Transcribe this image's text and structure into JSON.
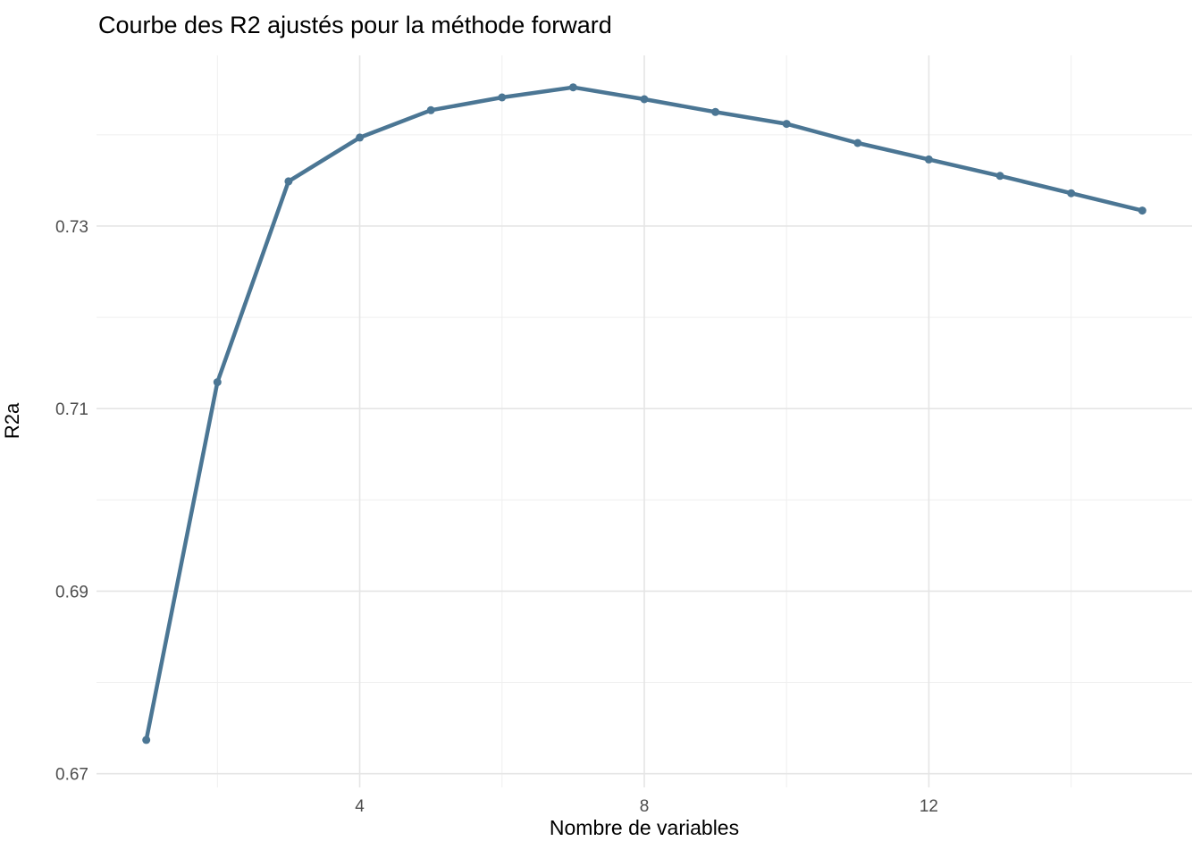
{
  "chart": {
    "title": "Courbe des R2 ajustés pour la méthode forward",
    "xlabel": "Nombre de variables",
    "ylabel": "R2a"
  },
  "chart_data": {
    "type": "line",
    "title": "Courbe des R2 ajustés pour la méthode forward",
    "xlabel": "Nombre de variables",
    "ylabel": "R2a",
    "x": [
      1,
      2,
      3,
      4,
      5,
      6,
      7,
      8,
      9,
      10,
      11,
      12,
      13,
      14,
      15
    ],
    "y": [
      0.6737,
      0.7129,
      0.7349,
      0.7397,
      0.7427,
      0.7441,
      0.7452,
      0.7439,
      0.7425,
      0.7412,
      0.7391,
      0.7373,
      0.7355,
      0.7336,
      0.7317
    ],
    "xlim": [
      0.3,
      15.7
    ],
    "ylim": [
      0.6685,
      0.7487
    ],
    "x_major_ticks": [
      4,
      8,
      12
    ],
    "x_tick_labels": [
      "4",
      "8",
      "12"
    ],
    "x_minor_ticks": [
      2,
      6,
      10,
      14
    ],
    "y_major_ticks": [
      0.67,
      0.69,
      0.71,
      0.73
    ],
    "y_tick_labels": [
      "0.67",
      "0.69",
      "0.71",
      "0.73"
    ],
    "y_minor_ticks": [
      0.68,
      0.7,
      0.72,
      0.74
    ],
    "grid": true,
    "legend": "none",
    "line_color": "#4b7694",
    "point_color": "#4b7694",
    "major_grid_color": "#e5e5e5",
    "minor_grid_color": "#efefef",
    "tick_label_color": "#4d4d4d",
    "background_color": "#ffffff"
  }
}
